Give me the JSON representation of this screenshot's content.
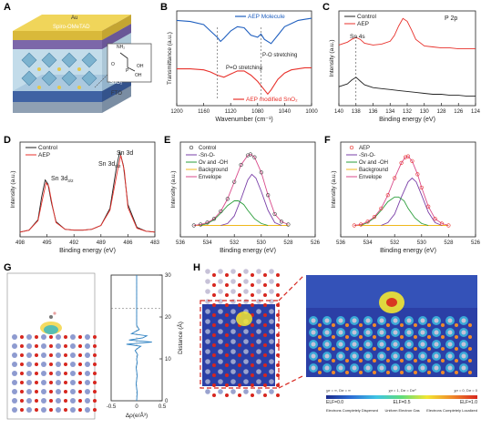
{
  "panels": {
    "A": {
      "label": "A",
      "layers": [
        "Au",
        "Spiro-OMeTAD",
        "SnO₂",
        "FTO"
      ],
      "molecule_labels": [
        "NH₂",
        "O",
        "OH",
        "P",
        "OH"
      ]
    },
    "B": {
      "label": "B",
      "ylabel": "Transmittance (a.u.)",
      "xlabel": "Wavenumber (cm⁻¹)",
      "xticks": [
        "1200",
        "1160",
        "1120",
        "1080",
        "1040",
        "1000"
      ],
      "legend_top": "AEP Molecule",
      "legend_bottom": "AEP modified SnO₂",
      "annot_left": "P=O stretching",
      "annot_right": "P-O stretching",
      "colors": {
        "top": "#1f5fbf",
        "bottom": "#e8312b"
      }
    },
    "C": {
      "label": "C",
      "ylabel": "Intensity (a.u.)",
      "xlabel": "Binding energy (eV)",
      "xticks": [
        "140",
        "138",
        "136",
        "134",
        "132",
        "130",
        "128",
        "126",
        "124"
      ],
      "legend": [
        "Control",
        "AEP"
      ],
      "title": "P 2p",
      "annot": "Sn 4s"
    },
    "D": {
      "label": "D",
      "ylabel": "Intensity (a.u.)",
      "xlabel": "Binding energy (eV)",
      "xticks": [
        "498",
        "495",
        "492",
        "489",
        "486",
        "483"
      ],
      "legend": [
        "Control",
        "AEP"
      ],
      "title": "Sn 3d",
      "peak_left": "Sn 3d",
      "peak_left_sub": "3/2",
      "peak_right": "Sn 3d",
      "peak_right_sub": "5/2"
    },
    "E": {
      "label": "E",
      "ylabel": "Intensity (a.u.)",
      "xlabel": "Binding energy (eV)",
      "xticks": [
        "536",
        "534",
        "532",
        "530",
        "528",
        "526"
      ],
      "legend": [
        "Control",
        "-Sn-O-",
        "Ov and -OH",
        "Background",
        "Envelope"
      ],
      "marker_color": "#3a3a3a"
    },
    "F": {
      "label": "F",
      "ylabel": "Intensity (a.u.)",
      "xlabel": "Binding energy (eV)",
      "xticks": [
        "536",
        "534",
        "532",
        "530",
        "528",
        "526"
      ],
      "legend": [
        "AEP",
        "-Sn-O-",
        "Ov and -OH",
        "Background",
        "Envelope"
      ],
      "marker_color": "#e8312b"
    },
    "G": {
      "label": "G",
      "ylabel": "Distance (Å)",
      "xlabel": "Δρ(e/Å³)",
      "xticks": [
        "-0.5",
        "0",
        "0.5"
      ],
      "yticks": [
        "0",
        "10",
        "20",
        "30"
      ]
    },
    "H": {
      "label": "H",
      "scale_top": [
        "χσ = ∞,  Dσ = ∞",
        "χσ = 1,  Dσ = Dσ⁰",
        "χσ = 0,  Dσ = 0"
      ],
      "scale_mid": [
        "ELF=0.0",
        "ELF=0.5",
        "ELF=1.0"
      ],
      "scale_bottom": [
        "Electrons Completely Dispersed",
        "Uniform Electron Gas",
        "Electrons Completely Localized"
      ]
    }
  },
  "chart_data": [
    {
      "type": "line",
      "panel": "B",
      "xlabel": "Wavenumber (cm⁻¹)",
      "ylabel": "Transmittance (a.u.)",
      "xlim": [
        1200,
        1000
      ],
      "series": [
        {
          "name": "AEP Molecule",
          "x": [
            1200,
            1180,
            1160,
            1150,
            1140,
            1135,
            1130,
            1120,
            1110,
            1100,
            1090,
            1080,
            1075,
            1070,
            1060,
            1050,
            1040,
            1030,
            1020,
            1010,
            1000
          ],
          "y": [
            0.96,
            0.95,
            0.92,
            0.86,
            0.8,
            0.76,
            0.79,
            0.86,
            0.9,
            0.89,
            0.82,
            0.8,
            0.83,
            0.78,
            0.74,
            0.82,
            0.9,
            0.93,
            0.96,
            0.97,
            0.98
          ]
        },
        {
          "name": "AEP modified SnO₂",
          "x": [
            1200,
            1180,
            1160,
            1150,
            1140,
            1130,
            1120,
            1110,
            1100,
            1090,
            1080,
            1070,
            1065,
            1060,
            1050,
            1040,
            1030,
            1020,
            1010,
            1000
          ],
          "y": [
            0.5,
            0.5,
            0.49,
            0.47,
            0.44,
            0.42,
            0.45,
            0.48,
            0.48,
            0.44,
            0.38,
            0.3,
            0.26,
            0.3,
            0.4,
            0.46,
            0.49,
            0.5,
            0.51,
            0.51
          ]
        }
      ]
    },
    {
      "type": "line",
      "panel": "C",
      "xlabel": "Binding energy (eV)",
      "ylabel": "Intensity (a.u.)",
      "xlim": [
        140,
        124
      ],
      "series": [
        {
          "name": "Control",
          "x": [
            140,
            139,
            138.5,
            138,
            137.5,
            137,
            136,
            135,
            134,
            133,
            132,
            131,
            130,
            129,
            128,
            127,
            126,
            125,
            124
          ],
          "y": [
            0.2,
            0.23,
            0.27,
            0.3,
            0.26,
            0.22,
            0.19,
            0.18,
            0.17,
            0.16,
            0.15,
            0.14,
            0.13,
            0.12,
            0.12,
            0.11,
            0.11,
            0.1,
            0.1
          ]
        },
        {
          "name": "AEP",
          "x": [
            140,
            139,
            138.5,
            138,
            137.5,
            137,
            136,
            135,
            134,
            133.5,
            133,
            132.5,
            132,
            131.5,
            131,
            130,
            129,
            128,
            127,
            126,
            125,
            124
          ],
          "y": [
            0.64,
            0.67,
            0.7,
            0.72,
            0.7,
            0.66,
            0.64,
            0.65,
            0.68,
            0.74,
            0.84,
            0.92,
            0.89,
            0.8,
            0.7,
            0.63,
            0.62,
            0.61,
            0.61,
            0.6,
            0.6,
            0.6
          ]
        }
      ]
    },
    {
      "type": "line",
      "panel": "D",
      "xlabel": "Binding energy (eV)",
      "ylabel": "Intensity (a.u.)",
      "xlim": [
        498,
        483
      ],
      "series": [
        {
          "name": "Control",
          "x": [
            498,
            497,
            496,
            495.6,
            495.2,
            494.9,
            494.5,
            494,
            493,
            492,
            491,
            490,
            489,
            488,
            487.3,
            486.9,
            486.5,
            486,
            485,
            484,
            483
          ],
          "y": [
            0.05,
            0.07,
            0.18,
            0.42,
            0.6,
            0.56,
            0.36,
            0.16,
            0.08,
            0.07,
            0.07,
            0.08,
            0.12,
            0.3,
            0.72,
            0.9,
            0.75,
            0.34,
            0.1,
            0.06,
            0.05
          ]
        },
        {
          "name": "AEP",
          "x": [
            498,
            497,
            496,
            495.5,
            495.1,
            494.8,
            494.4,
            494,
            493,
            492,
            491,
            490,
            489,
            488,
            487.2,
            486.8,
            486.4,
            486,
            485,
            484,
            483
          ],
          "y": [
            0.05,
            0.07,
            0.17,
            0.4,
            0.57,
            0.53,
            0.33,
            0.15,
            0.08,
            0.07,
            0.07,
            0.08,
            0.12,
            0.28,
            0.68,
            0.86,
            0.7,
            0.31,
            0.09,
            0.06,
            0.05
          ]
        }
      ]
    },
    {
      "type": "line",
      "panel": "E",
      "xlabel": "Binding energy (eV)",
      "ylabel": "Intensity (a.u.)",
      "xlim": [
        536,
        526
      ],
      "series": [
        {
          "name": "Control",
          "x": [
            535,
            534.5,
            534,
            533.5,
            533,
            532.5,
            532,
            531.5,
            531,
            530.8,
            530.5,
            530,
            529.5,
            529,
            528.5,
            528
          ],
          "y": [
            0.12,
            0.13,
            0.15,
            0.19,
            0.27,
            0.4,
            0.58,
            0.76,
            0.86,
            0.87,
            0.84,
            0.68,
            0.44,
            0.24,
            0.16,
            0.13
          ]
        },
        {
          "name": "-Sn-O-",
          "x": [
            533,
            532.5,
            532,
            531.5,
            531,
            530.7,
            530.4,
            530,
            529.5,
            529,
            528.5
          ],
          "y": [
            0.12,
            0.14,
            0.22,
            0.4,
            0.6,
            0.66,
            0.62,
            0.48,
            0.28,
            0.15,
            0.12
          ]
        },
        {
          "name": "Ov and -OH",
          "x": [
            534.5,
            534,
            533.5,
            533,
            532.5,
            532,
            531.7,
            531.3,
            531,
            530.5,
            530,
            529.5
          ],
          "y": [
            0.12,
            0.14,
            0.18,
            0.25,
            0.33,
            0.38,
            0.38,
            0.34,
            0.28,
            0.19,
            0.14,
            0.12
          ]
        },
        {
          "name": "Background",
          "x": [
            535,
            528
          ],
          "y": [
            0.12,
            0.12
          ]
        }
      ]
    },
    {
      "type": "line",
      "panel": "F",
      "xlabel": "Binding energy (eV)",
      "ylabel": "Intensity (a.u.)",
      "xlim": [
        536,
        526
      ],
      "series": [
        {
          "name": "AEP",
          "x": [
            535,
            534.5,
            534,
            533.5,
            533,
            532.5,
            532,
            531.5,
            531.2,
            531,
            530.7,
            530.3,
            530,
            529.5,
            529,
            528.5,
            528
          ],
          "y": [
            0.12,
            0.13,
            0.16,
            0.21,
            0.3,
            0.44,
            0.62,
            0.78,
            0.84,
            0.85,
            0.8,
            0.66,
            0.52,
            0.32,
            0.19,
            0.14,
            0.12
          ]
        },
        {
          "name": "-Sn-O-",
          "x": [
            533,
            532.5,
            532,
            531.5,
            531,
            530.7,
            530.4,
            530,
            529.5,
            529,
            528.5
          ],
          "y": [
            0.12,
            0.15,
            0.24,
            0.42,
            0.58,
            0.62,
            0.58,
            0.44,
            0.26,
            0.15,
            0.12
          ]
        },
        {
          "name": "Ov and -OH",
          "x": [
            534.5,
            534,
            533.5,
            533,
            532.5,
            532,
            531.7,
            531.3,
            531,
            530.5,
            530,
            529.5
          ],
          "y": [
            0.12,
            0.15,
            0.2,
            0.28,
            0.37,
            0.42,
            0.42,
            0.38,
            0.3,
            0.2,
            0.14,
            0.12
          ]
        },
        {
          "name": "Background",
          "x": [
            535,
            528
          ],
          "y": [
            0.12,
            0.12
          ]
        }
      ]
    },
    {
      "type": "line",
      "panel": "G",
      "xlabel": "Δρ(e/Å³)",
      "ylabel": "Distance (Å)",
      "xlim": [
        -0.5,
        0.5
      ],
      "ylim": [
        0,
        30
      ],
      "x": [
        0,
        0.01,
        -0.01,
        0.01,
        -0.01,
        0.01,
        0,
        0.02,
        -0.03,
        0.02,
        0.08,
        -0.2,
        0.3,
        -0.15,
        0.12,
        0.2,
        -0.1,
        0.05,
        0,
        0,
        0
      ],
      "y": [
        0,
        2,
        4,
        6,
        8,
        9,
        10,
        11,
        12,
        12.5,
        13,
        13.5,
        14,
        14.5,
        15,
        15.5,
        16,
        17,
        18,
        22,
        30
      ]
    }
  ]
}
